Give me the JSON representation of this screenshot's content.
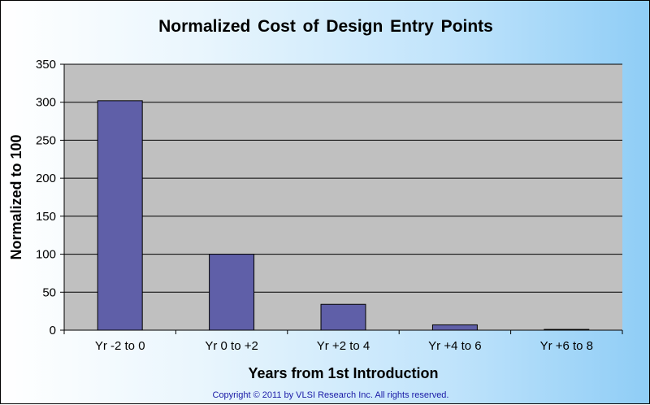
{
  "chart_data": {
    "type": "bar",
    "title": "Normalized  Cost of Design  Entry Points",
    "xlabel": "Years from 1st Introduction",
    "ylabel": "Normalized to 100",
    "categories": [
      "Yr -2 to 0",
      "Yr 0 to +2",
      "Yr +2 to 4",
      "Yr +4 to 6",
      "Yr +6 to 8"
    ],
    "values": [
      302,
      100,
      34,
      7,
      1
    ],
    "ylim": [
      0,
      350
    ],
    "yticks": [
      0,
      50,
      100,
      150,
      200,
      250,
      300,
      350
    ],
    "grid": true,
    "colors": {
      "bar": "#5f5fa8",
      "bar_border": "#000000",
      "plot_bg": "#c0c0c0",
      "grid": "#000000"
    }
  },
  "footer": {
    "copyright": "Copyright © 2011 by VLSI Research Inc.    All rights reserved."
  }
}
